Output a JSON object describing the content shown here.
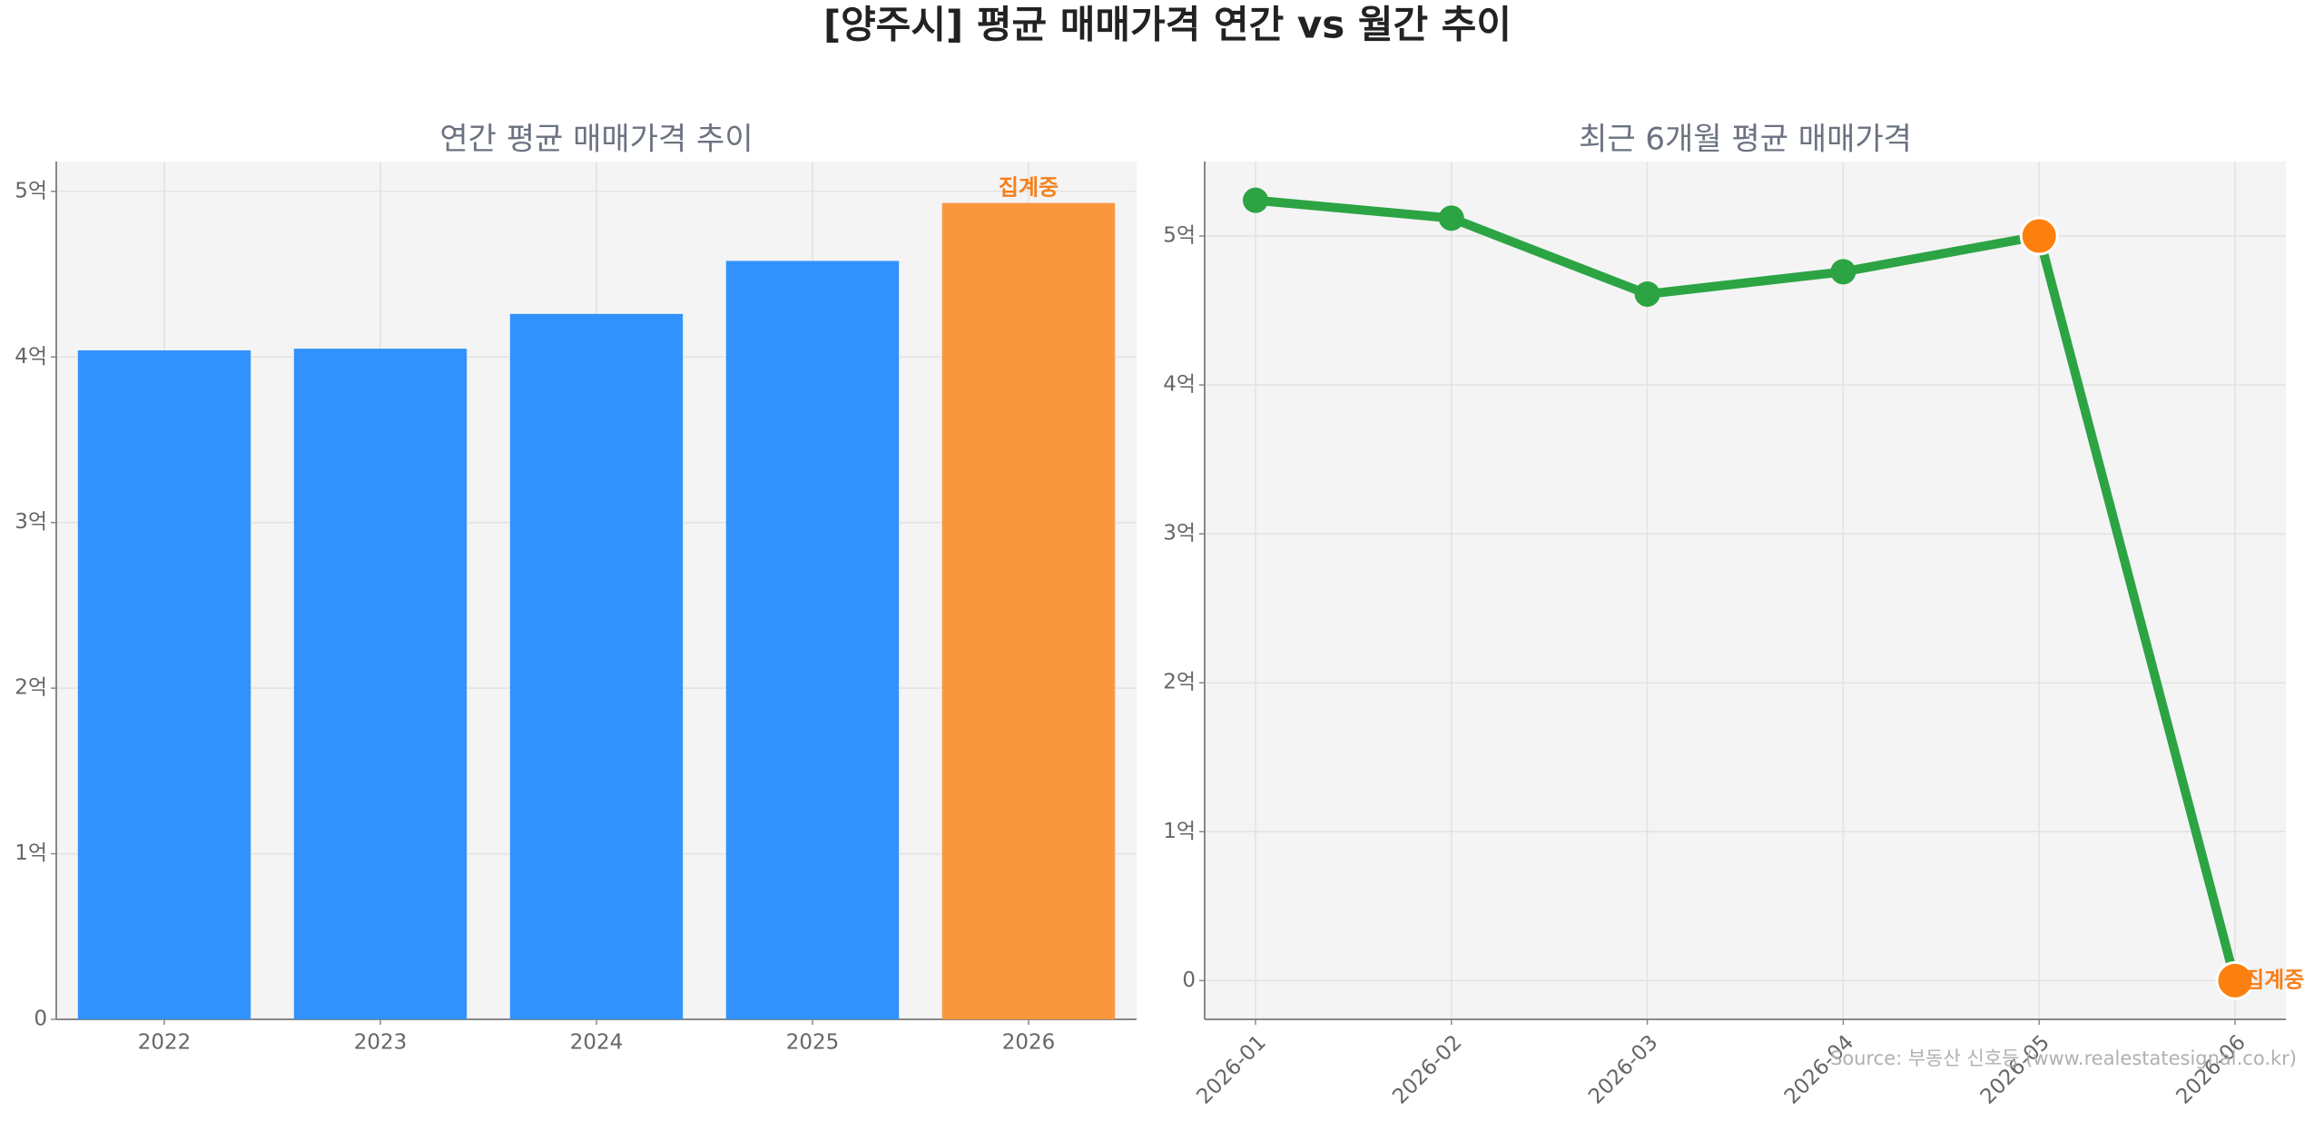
{
  "title": "[양주시] 평균 매매가격 연간 vs 월간 추이",
  "source": "Source: 부동산 신호등 (www.realestatesignal.co.kr)",
  "chart_data": [
    {
      "type": "bar",
      "title": "연간 평균 매매가격 추이",
      "categories": [
        "2022",
        "2023",
        "2024",
        "2025",
        "2026"
      ],
      "values": [
        4.04,
        4.05,
        4.26,
        4.58,
        4.93
      ],
      "colors": [
        "#3292fb",
        "#3292fb",
        "#3292fb",
        "#3292fb",
        "#f9973f"
      ],
      "annotation": "집계중",
      "annotation_color": "#f77f1a",
      "ylim": [
        0,
        5.18
      ],
      "yticks": [
        0,
        {
          "value": 1,
          "label": "1억"
        },
        {
          "value": 2,
          "label": "2억"
        },
        {
          "value": 3,
          "label": "3억"
        },
        {
          "value": 4,
          "label": "4억"
        },
        {
          "value": 5,
          "label": "5억"
        }
      ],
      "grid": true
    },
    {
      "type": "line",
      "title": "최근 6개월 평균 매매가격",
      "categories": [
        "2026-01",
        "2026-02",
        "2026-03",
        "2026-04",
        "2026-05",
        "2026-06"
      ],
      "values": [
        5.24,
        5.12,
        4.61,
        4.76,
        5.0,
        0
      ],
      "color": "#2ca444",
      "marker_colors": [
        "#2ca444",
        "#2ca444",
        "#2ca444",
        "#2ca444",
        "#fd7f0e",
        "#fd7f0e"
      ],
      "annotation": "집계중",
      "annotation_color": "#f77f1a",
      "ylim": [
        -0.26,
        5.5
      ],
      "yticks": [
        0,
        {
          "value": 1,
          "label": "1억"
        },
        {
          "value": 2,
          "label": "2억"
        },
        {
          "value": 3,
          "label": "3억"
        },
        {
          "value": 4,
          "label": "4억"
        },
        {
          "value": 5,
          "label": "5억"
        }
      ],
      "grid": true
    }
  ]
}
